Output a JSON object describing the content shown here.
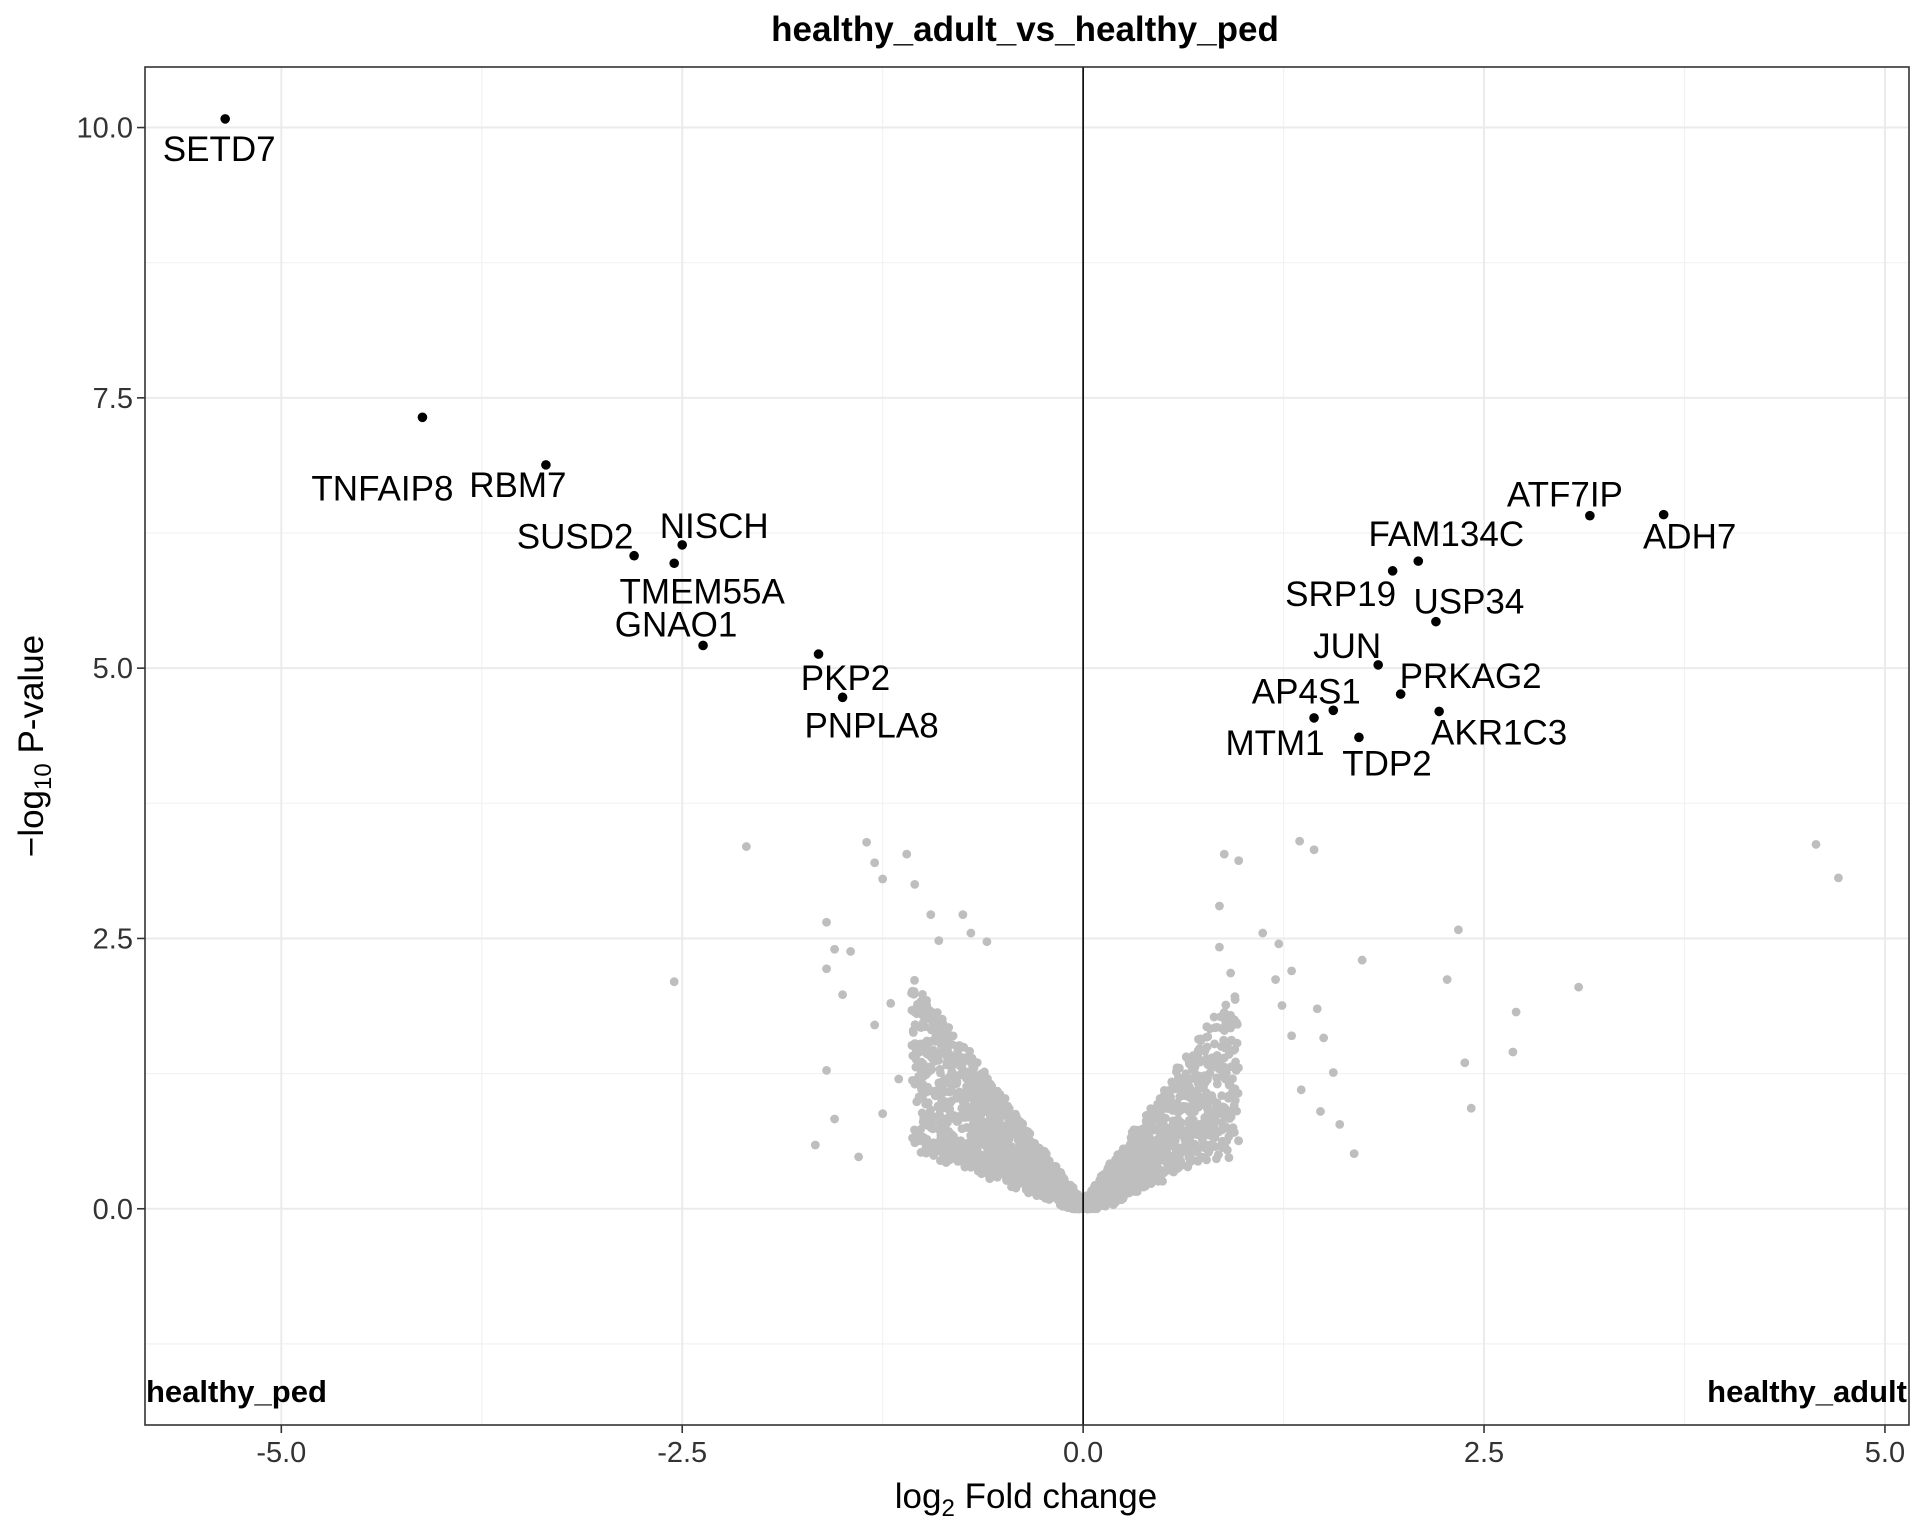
{
  "chart_data": {
    "type": "scatter",
    "title": "healthy_adult_vs_healthy_ped",
    "xlabel_prefix": "log",
    "xlabel_sub": "2",
    "xlabel_suffix": " Fold change",
    "ylabel_prefix": "−log",
    "ylabel_sub": "10",
    "ylabel_suffix": " P-value",
    "xlim": [
      -5.85,
      5.15
    ],
    "ylim": [
      -2.0,
      10.56
    ],
    "x_ticks": [
      -5.0,
      -2.5,
      0.0,
      2.5,
      5.0
    ],
    "x_tick_labels": [
      "-5.0",
      "-2.5",
      "0.0",
      "2.5",
      "5.0"
    ],
    "y_ticks": [
      0.0,
      2.5,
      5.0,
      7.5,
      10.0
    ],
    "y_tick_labels": [
      "0.0",
      "2.5",
      "5.0",
      "7.5",
      "10.0"
    ],
    "grid": true,
    "vline_x": 0,
    "left_corner_label": "healthy_ped",
    "right_corner_label": "healthy_adult",
    "significant_color": "#000000",
    "background_color": "#bebebe",
    "significant_points": [
      {
        "label": "SETD7",
        "x": -5.35,
        "y": 10.08
      },
      {
        "label": "TNFAIP8",
        "x": -4.12,
        "y": 7.32
      },
      {
        "label": "RBM7",
        "x": -3.35,
        "y": 6.88
      },
      {
        "label": "NISCH",
        "x": -2.5,
        "y": 6.14
      },
      {
        "label": "SUSD2",
        "x": -2.8,
        "y": 6.04
      },
      {
        "label": "TMEM55A",
        "x": -2.55,
        "y": 5.97
      },
      {
        "label": "GNAO1",
        "x": -2.37,
        "y": 5.21
      },
      {
        "label": "PKP2",
        "x": -1.65,
        "y": 5.13
      },
      {
        "label": "PNPLA8",
        "x": -1.5,
        "y": 4.73
      },
      {
        "label": "ATF7IP",
        "x": 3.16,
        "y": 6.41
      },
      {
        "label": "ADH7",
        "x": 3.62,
        "y": 6.42
      },
      {
        "label": "FAM134C",
        "x": 2.09,
        "y": 5.99
      },
      {
        "label": "SRP19",
        "x": 1.93,
        "y": 5.9
      },
      {
        "label": "USP34",
        "x": 2.2,
        "y": 5.43
      },
      {
        "label": "JUN",
        "x": 1.84,
        "y": 5.03
      },
      {
        "label": "PRKAG2",
        "x": 1.98,
        "y": 4.76
      },
      {
        "label": "AP4S1",
        "x": 1.56,
        "y": 4.61
      },
      {
        "label": "AKR1C3",
        "x": 2.22,
        "y": 4.6
      },
      {
        "label": "MTM1",
        "x": 1.44,
        "y": 4.54
      },
      {
        "label": "TDP2",
        "x": 1.72,
        "y": 4.36
      }
    ],
    "outlier_points": [
      [
        -2.1,
        3.35
      ],
      [
        -2.55,
        2.1
      ],
      [
        -1.35,
        3.39
      ],
      [
        -1.3,
        3.2
      ],
      [
        -1.25,
        3.05
      ],
      [
        -1.1,
        3.28
      ],
      [
        -1.05,
        3.0
      ],
      [
        -0.95,
        2.72
      ],
      [
        -0.9,
        2.48
      ],
      [
        -0.75,
        2.72
      ],
      [
        -0.7,
        2.55
      ],
      [
        -0.6,
        2.47
      ],
      [
        -1.6,
        2.65
      ],
      [
        -1.55,
        2.4
      ],
      [
        -1.45,
        2.38
      ],
      [
        -1.6,
        2.22
      ],
      [
        -1.5,
        1.98
      ],
      [
        -1.3,
        1.7
      ],
      [
        -1.2,
        1.9
      ],
      [
        -1.6,
        1.28
      ],
      [
        -1.55,
        0.83
      ],
      [
        -1.67,
        0.59
      ],
      [
        -1.4,
        0.48
      ],
      [
        -1.25,
        0.88
      ],
      [
        -1.15,
        1.2
      ],
      [
        0.88,
        3.28
      ],
      [
        0.97,
        3.22
      ],
      [
        0.85,
        2.8
      ],
      [
        0.85,
        2.42
      ],
      [
        0.92,
        2.18
      ],
      [
        1.12,
        2.55
      ],
      [
        1.22,
        2.45
      ],
      [
        1.35,
        3.4
      ],
      [
        1.44,
        3.32
      ],
      [
        1.74,
        2.3
      ],
      [
        1.3,
        2.2
      ],
      [
        1.2,
        2.12
      ],
      [
        1.24,
        1.88
      ],
      [
        1.46,
        1.85
      ],
      [
        1.5,
        1.58
      ],
      [
        1.3,
        1.6
      ],
      [
        1.56,
        1.26
      ],
      [
        1.36,
        1.1
      ],
      [
        1.48,
        0.9
      ],
      [
        1.6,
        0.78
      ],
      [
        1.69,
        0.51
      ],
      [
        2.34,
        2.58
      ],
      [
        2.27,
        2.12
      ],
      [
        2.38,
        1.35
      ],
      [
        2.42,
        0.93
      ],
      [
        2.68,
        1.45
      ],
      [
        2.7,
        1.82
      ],
      [
        3.09,
        2.05
      ],
      [
        4.57,
        3.37
      ],
      [
        4.71,
        3.06
      ]
    ]
  }
}
